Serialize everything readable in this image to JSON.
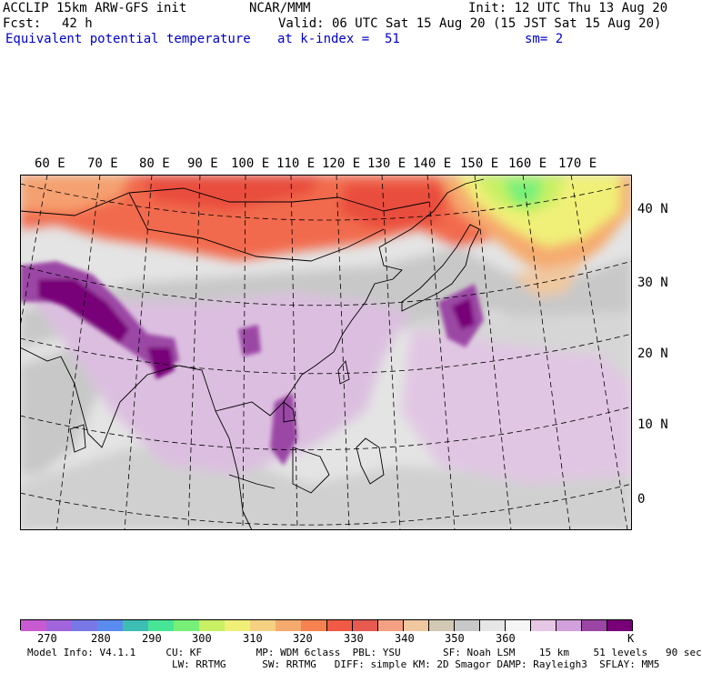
{
  "header": {
    "model": "ACCLIP 15km ARW-GFS init",
    "org": "NCAR/MMM",
    "init": "Init: 12 UTC Thu 13 Aug 20",
    "fcst_label": "Fcst:",
    "fcst_value": "42 h",
    "valid": "Valid: 06 UTC Sat 15 Aug 20 (15 JST Sat 15 Aug 20)",
    "field": "Equivalent potential temperature",
    "level": "at k-index =  51",
    "smooth": "sm= 2"
  },
  "map": {
    "lon_labels": [
      "60 E",
      "70 E",
      "80 E",
      "90 E",
      "100 E",
      "110 E",
      "120 E",
      "130 E",
      "140 E",
      "150 E",
      "160 E",
      "170 E"
    ],
    "lat_labels": [
      "40 N",
      "30 N",
      "20 N",
      "10 N",
      "0"
    ]
  },
  "colorbar": {
    "unit": "K",
    "ticks": [
      "270",
      "280",
      "290",
      "300",
      "310",
      "320",
      "330",
      "340",
      "350",
      "360"
    ],
    "colors": [
      "#c85ad2",
      "#a064dc",
      "#7878e6",
      "#5a8cf0",
      "#3cbeb4",
      "#46e696",
      "#78f078",
      "#c8f064",
      "#f0f078",
      "#f5d282",
      "#f5aa6e",
      "#f58250",
      "#f05a46",
      "#e65a50",
      "#f5a082",
      "#f0c8a0",
      "#d2c8b4",
      "#c8c8c8",
      "#e6e6e6",
      "#f5f5f5",
      "#e6c8e6",
      "#d2a0dc",
      "#9b46a5",
      "#780078"
    ]
  },
  "footer": {
    "line1": "Model Info: V4.1.1     CU: KF         MP: WDM 6class  PBL: YSU       SF: Noah LSM    15 km    51 levels   90 sec",
    "line2": "                        LW: RRTMG      SW: RRTMG   DIFF: simple KM: 2D Smagor DAMP: Rayleigh3  SFLAY: MM5"
  }
}
